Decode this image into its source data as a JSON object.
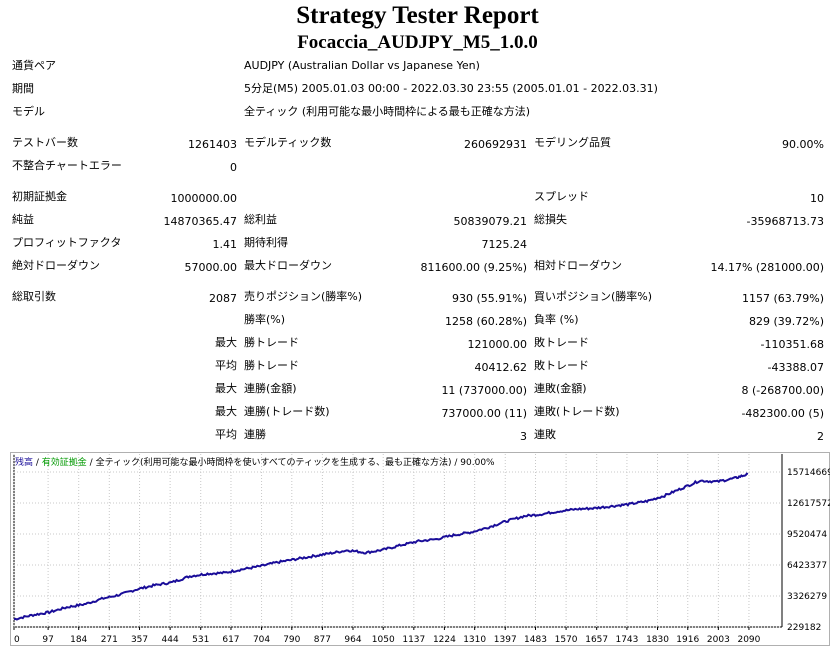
{
  "header": {
    "title": "Strategy Tester Report",
    "subtitle": "Focaccia_AUDJPY_M5_1.0.0"
  },
  "info": [
    {
      "label": "通貨ペア",
      "value": "AUDJPY (Australian Dollar vs Japanese Yen)"
    },
    {
      "label": "期間",
      "value": "5分足(M5) 2005.01.03 00:00 - 2022.03.30 23:55 (2005.01.01 - 2022.03.31)"
    },
    {
      "label": "モデル",
      "value": "全ティック (利用可能な最小時間枠による最も正確な方法)"
    }
  ],
  "stats": {
    "bars_label": "テストバー数",
    "bars": "1261403",
    "ticks_label": "モデルティック数",
    "ticks": "260692931",
    "quality_label": "モデリング品質",
    "quality": "90.00%",
    "mismatch_label": "不整合チャートエラー",
    "mismatch": "0",
    "deposit_label": "初期証拠金",
    "deposit": "1000000.00",
    "spread_label": "スプレッド",
    "spread": "10",
    "net_label": "純益",
    "net": "14870365.47",
    "gross_profit_label": "総利益",
    "gross_profit": "50839079.21",
    "gross_loss_label": "総損失",
    "gross_loss": "-35968713.73",
    "pf_label": "プロフィットファクタ",
    "pf": "1.41",
    "expected_label": "期待利得",
    "expected": "7125.24",
    "abs_dd_label": "絶対ドローダウン",
    "abs_dd": "57000.00",
    "max_dd_label": "最大ドローダウン",
    "max_dd": "811600.00 (9.25%)",
    "rel_dd_label": "相対ドローダウン",
    "rel_dd": "14.17% (281000.00)",
    "total_label": "総取引数",
    "total": "2087",
    "short_label": "売りポジション(勝率%)",
    "short": "930 (55.91%)",
    "long_label": "買いポジション(勝率%)",
    "long": "1157 (63.79%)",
    "winrate_label": "勝率(%)",
    "winrate": "1258 (60.28%)",
    "lossrate_label": "負率 (%)",
    "lossrate": "829 (39.72%)",
    "max_prefix": "最大",
    "avg_prefix": "平均",
    "largest_win_label": "勝トレード",
    "largest_win": "121000.00",
    "largest_loss_label": "敗トレード",
    "largest_loss": "-110351.68",
    "avg_win_label": "勝トレード",
    "avg_win": "40412.62",
    "avg_loss_label": "敗トレード",
    "avg_loss": "-43388.07",
    "max_consec_win_money_label": "連勝(金額)",
    "max_consec_win_money": "11 (737000.00)",
    "max_consec_loss_money_label": "連敗(金額)",
    "max_consec_loss_money": "8 (-268700.00)",
    "max_consec_win_count_label": "連勝(トレード数)",
    "max_consec_win_count": "737000.00 (11)",
    "max_consec_loss_count_label": "連敗(トレード数)",
    "max_consec_loss_count": "-482300.00 (5)",
    "avg_consec_win_label": "連勝",
    "avg_consec_win": "3",
    "avg_consec_loss_label": "連敗",
    "avg_consec_loss": "2"
  },
  "chart_data": {
    "type": "line",
    "legend": {
      "balance": "残高",
      "sep1": " / ",
      "margin": "有効証拠金",
      "sep2": " / ",
      "model": "全ティック(利用可能な最小時間枠を使いすべてのティックを生成する、最も正確な方法)",
      "sep3": " / ",
      "quality": "90.00%"
    },
    "x_ticks": [
      "0",
      "97",
      "184",
      "271",
      "357",
      "444",
      "531",
      "617",
      "704",
      "790",
      "877",
      "964",
      "1050",
      "1137",
      "1224",
      "1310",
      "1397",
      "1483",
      "1570",
      "1657",
      "1743",
      "1830",
      "1916",
      "2003",
      "2090"
    ],
    "y_ticks": [
      "15714669",
      "12617572",
      "9520474",
      "6423377",
      "3326279",
      "229182"
    ],
    "xlim": [
      0,
      2184
    ],
    "ylim": [
      229182,
      15714669
    ],
    "series": [
      {
        "color": "#1a0d99",
        "x": [
          0,
          50,
          100,
          150,
          200,
          250,
          300,
          350,
          400,
          450,
          500,
          550,
          600,
          650,
          700,
          750,
          800,
          850,
          900,
          950,
          1000,
          1050,
          1100,
          1150,
          1200,
          1250,
          1300,
          1350,
          1400,
          1450,
          1500,
          1550,
          1600,
          1650,
          1700,
          1750,
          1800,
          1850,
          1900,
          1950,
          2000,
          2050,
          2087
        ],
        "y": [
          1000000,
          1400000,
          1700000,
          2200000,
          2500000,
          3050000,
          3450000,
          4000000,
          4400000,
          4700000,
          5300000,
          5550000,
          5650000,
          6000000,
          6300000,
          6700000,
          7000000,
          7300000,
          7600000,
          7900000,
          7650000,
          7950000,
          8400000,
          8800000,
          9000000,
          9400000,
          9700000,
          10200000,
          10800000,
          11300000,
          11500000,
          11800000,
          12000000,
          12100000,
          12300000,
          12500000,
          12800000,
          13350000,
          14100000,
          14850000,
          14750000,
          15100000,
          15500000
        ]
      }
    ]
  }
}
